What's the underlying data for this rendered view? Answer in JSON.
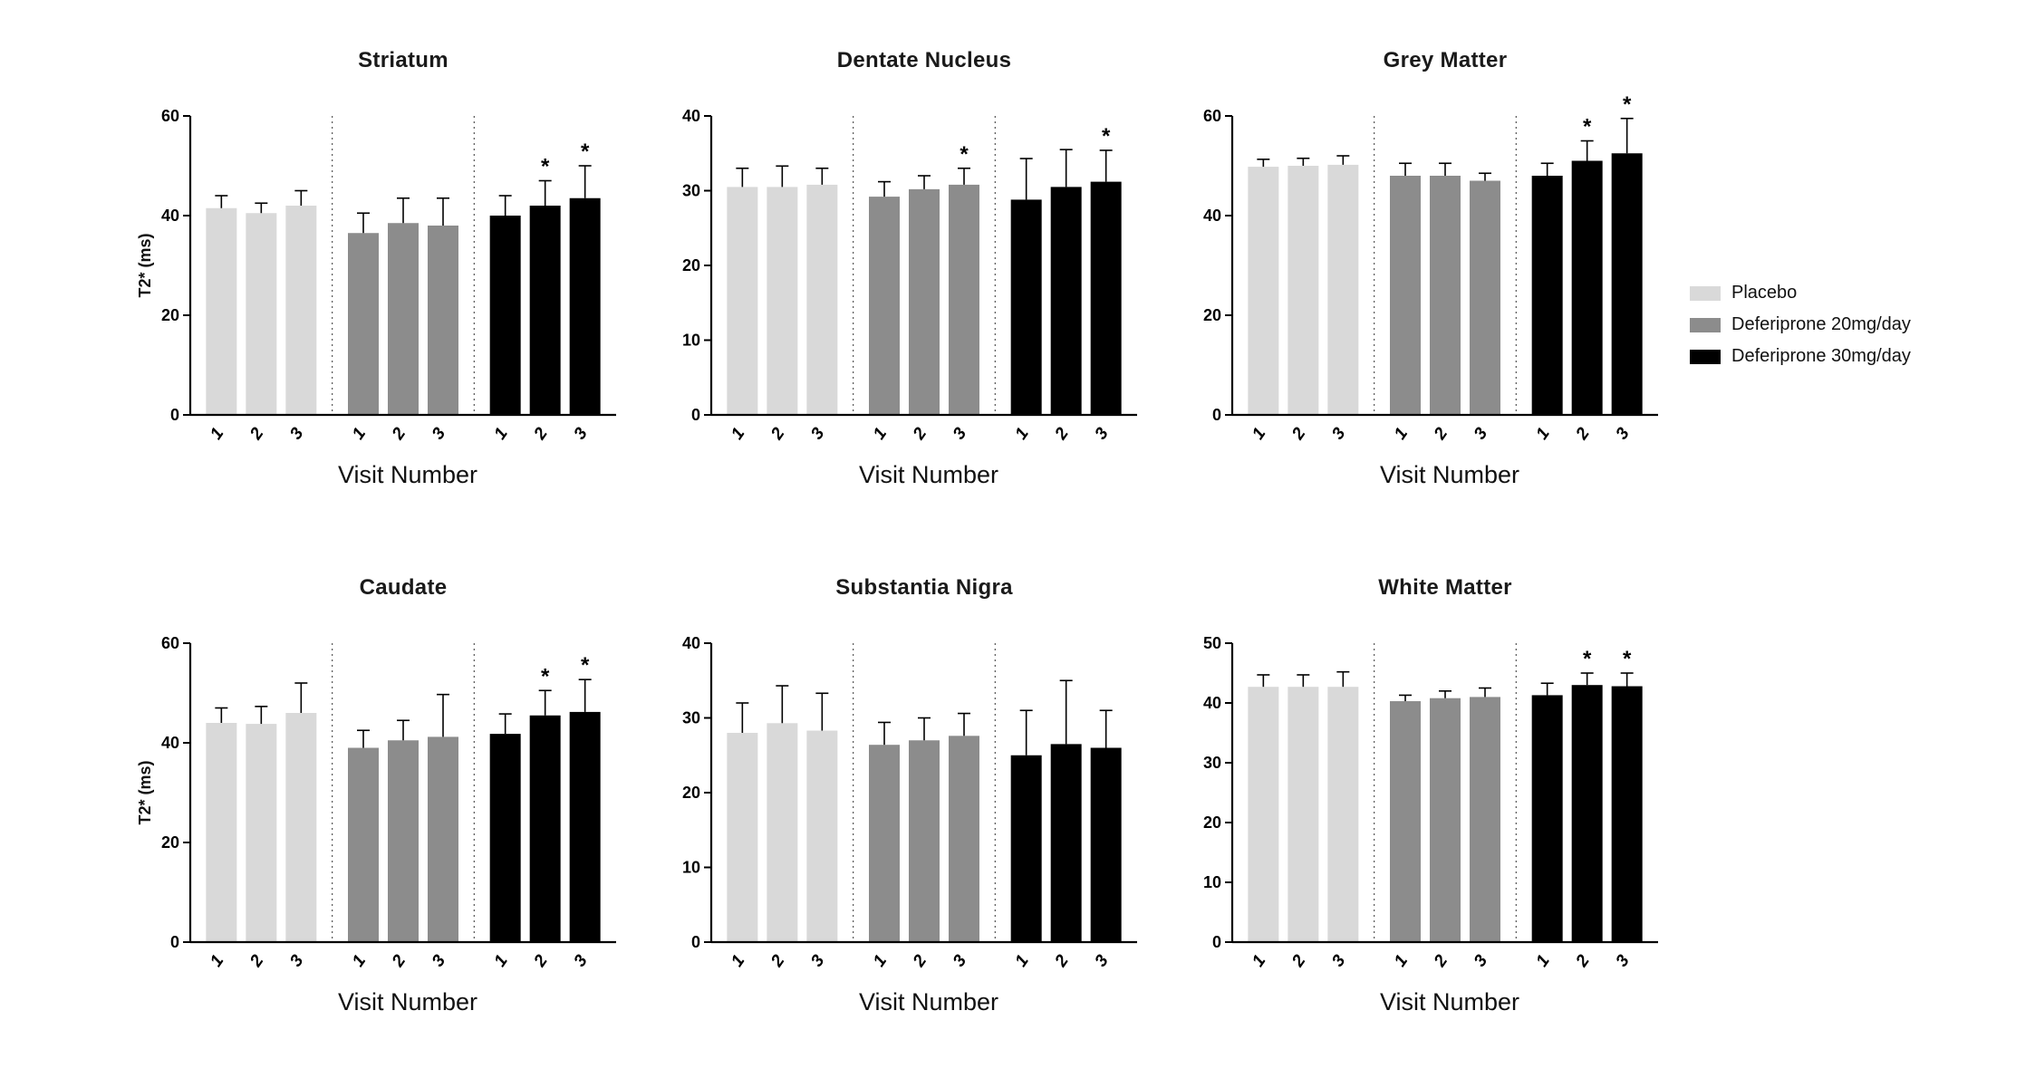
{
  "legend": {
    "items": [
      {
        "label": "Placebo",
        "color": "#d9d9d9"
      },
      {
        "label": "Deferiprone 20mg/day",
        "color": "#8c8c8c"
      },
      {
        "label": "Deferiprone 30mg/day",
        "color": "#000000"
      }
    ]
  },
  "chart_data": [
    {
      "type": "bar",
      "title": "Striatum",
      "xlabel": "Visit Number",
      "ylabel": "T2* (ms)",
      "categories": [
        "1",
        "2",
        "3"
      ],
      "ylim": [
        0,
        60
      ],
      "yticks": [
        0,
        20,
        40,
        60
      ],
      "series": [
        {
          "name": "Placebo",
          "values": [
            41.5,
            40.5,
            42
          ],
          "errors": [
            2.5,
            2,
            3
          ],
          "sig": [
            "",
            "",
            ""
          ]
        },
        {
          "name": "Deferiprone 20mg/day",
          "values": [
            36.5,
            38.5,
            38
          ],
          "errors": [
            4,
            5,
            5.5
          ],
          "sig": [
            "",
            "",
            ""
          ]
        },
        {
          "name": "Deferiprone 30mg/day",
          "values": [
            40,
            42,
            43.5
          ],
          "errors": [
            4,
            5,
            6.5
          ],
          "sig": [
            "",
            "*",
            "*"
          ]
        }
      ]
    },
    {
      "type": "bar",
      "title": "Dentate Nucleus",
      "xlabel": "Visit Number",
      "ylabel": "",
      "categories": [
        "1",
        "2",
        "3"
      ],
      "ylim": [
        0,
        40
      ],
      "yticks": [
        0,
        10,
        20,
        30,
        40
      ],
      "series": [
        {
          "name": "Placebo",
          "values": [
            30.5,
            30.5,
            30.8
          ],
          "errors": [
            2.5,
            2.8,
            2.2
          ],
          "sig": [
            "",
            "",
            ""
          ]
        },
        {
          "name": "Deferiprone 20mg/day",
          "values": [
            29.2,
            30.2,
            30.8
          ],
          "errors": [
            2,
            1.8,
            2.2
          ],
          "sig": [
            "",
            "",
            "*"
          ]
        },
        {
          "name": "Deferiprone 30mg/day",
          "values": [
            28.8,
            30.5,
            31.2
          ],
          "errors": [
            5.5,
            5,
            4.2
          ],
          "sig": [
            "",
            "",
            "*"
          ]
        }
      ]
    },
    {
      "type": "bar",
      "title": "Grey Matter",
      "xlabel": "Visit Number",
      "ylabel": "",
      "categories": [
        "1",
        "2",
        "3"
      ],
      "ylim": [
        0,
        60
      ],
      "yticks": [
        0,
        20,
        40,
        60
      ],
      "series": [
        {
          "name": "Placebo",
          "values": [
            49.8,
            50,
            50.2
          ],
          "errors": [
            1.5,
            1.5,
            1.8
          ],
          "sig": [
            "",
            "",
            ""
          ]
        },
        {
          "name": "Deferiprone 20mg/day",
          "values": [
            48,
            48,
            47
          ],
          "errors": [
            2.5,
            2.5,
            1.5
          ],
          "sig": [
            "",
            "",
            ""
          ]
        },
        {
          "name": "Deferiprone 30mg/day",
          "values": [
            48,
            51,
            52.5
          ],
          "errors": [
            2.5,
            4,
            7
          ],
          "sig": [
            "",
            "*",
            "*"
          ]
        }
      ]
    },
    {
      "type": "bar",
      "title": "Caudate",
      "xlabel": "Visit Number",
      "ylabel": "T2* (ms)",
      "categories": [
        "1",
        "2",
        "3"
      ],
      "ylim": [
        0,
        60
      ],
      "yticks": [
        0,
        20,
        40,
        60
      ],
      "series": [
        {
          "name": "Placebo",
          "values": [
            44,
            43.8,
            46
          ],
          "errors": [
            3,
            3.5,
            6
          ],
          "sig": [
            "",
            "",
            ""
          ]
        },
        {
          "name": "Deferiprone 20mg/day",
          "values": [
            39,
            40.5,
            41.2
          ],
          "errors": [
            3.5,
            4,
            8.5
          ],
          "sig": [
            "",
            "",
            ""
          ]
        },
        {
          "name": "Deferiprone 30mg/day",
          "values": [
            41.8,
            45.5,
            46.2
          ],
          "errors": [
            4,
            5,
            6.5
          ],
          "sig": [
            "",
            "*",
            "*"
          ]
        }
      ]
    },
    {
      "type": "bar",
      "title": "Substantia Nigra",
      "xlabel": "Visit Number",
      "ylabel": "",
      "categories": [
        "1",
        "2",
        "3"
      ],
      "ylim": [
        0,
        40
      ],
      "yticks": [
        0,
        10,
        20,
        30,
        40
      ],
      "series": [
        {
          "name": "Placebo",
          "values": [
            28,
            29.3,
            28.3
          ],
          "errors": [
            4,
            5,
            5
          ],
          "sig": [
            "",
            "",
            ""
          ]
        },
        {
          "name": "Deferiprone 20mg/day",
          "values": [
            26.4,
            27,
            27.6
          ],
          "errors": [
            3,
            3,
            3
          ],
          "sig": [
            "",
            "",
            ""
          ]
        },
        {
          "name": "Deferiprone 30mg/day",
          "values": [
            25,
            26.5,
            26
          ],
          "errors": [
            6,
            8.5,
            5
          ],
          "sig": [
            "",
            "",
            ""
          ]
        }
      ]
    },
    {
      "type": "bar",
      "title": "White Matter",
      "xlabel": "Visit Number",
      "ylabel": "",
      "categories": [
        "1",
        "2",
        "3"
      ],
      "ylim": [
        0,
        50
      ],
      "yticks": [
        0,
        10,
        20,
        30,
        40,
        50
      ],
      "series": [
        {
          "name": "Placebo",
          "values": [
            42.7,
            42.7,
            42.7
          ],
          "errors": [
            2,
            2,
            2.5
          ],
          "sig": [
            "",
            "",
            ""
          ]
        },
        {
          "name": "Deferiprone 20mg/day",
          "values": [
            40.3,
            40.8,
            41
          ],
          "errors": [
            1,
            1.2,
            1.5
          ],
          "sig": [
            "",
            "",
            ""
          ]
        },
        {
          "name": "Deferiprone 30mg/day",
          "values": [
            41.3,
            43,
            42.8
          ],
          "errors": [
            2,
            2,
            2.2
          ],
          "sig": [
            "",
            "*",
            "*"
          ]
        }
      ]
    }
  ]
}
